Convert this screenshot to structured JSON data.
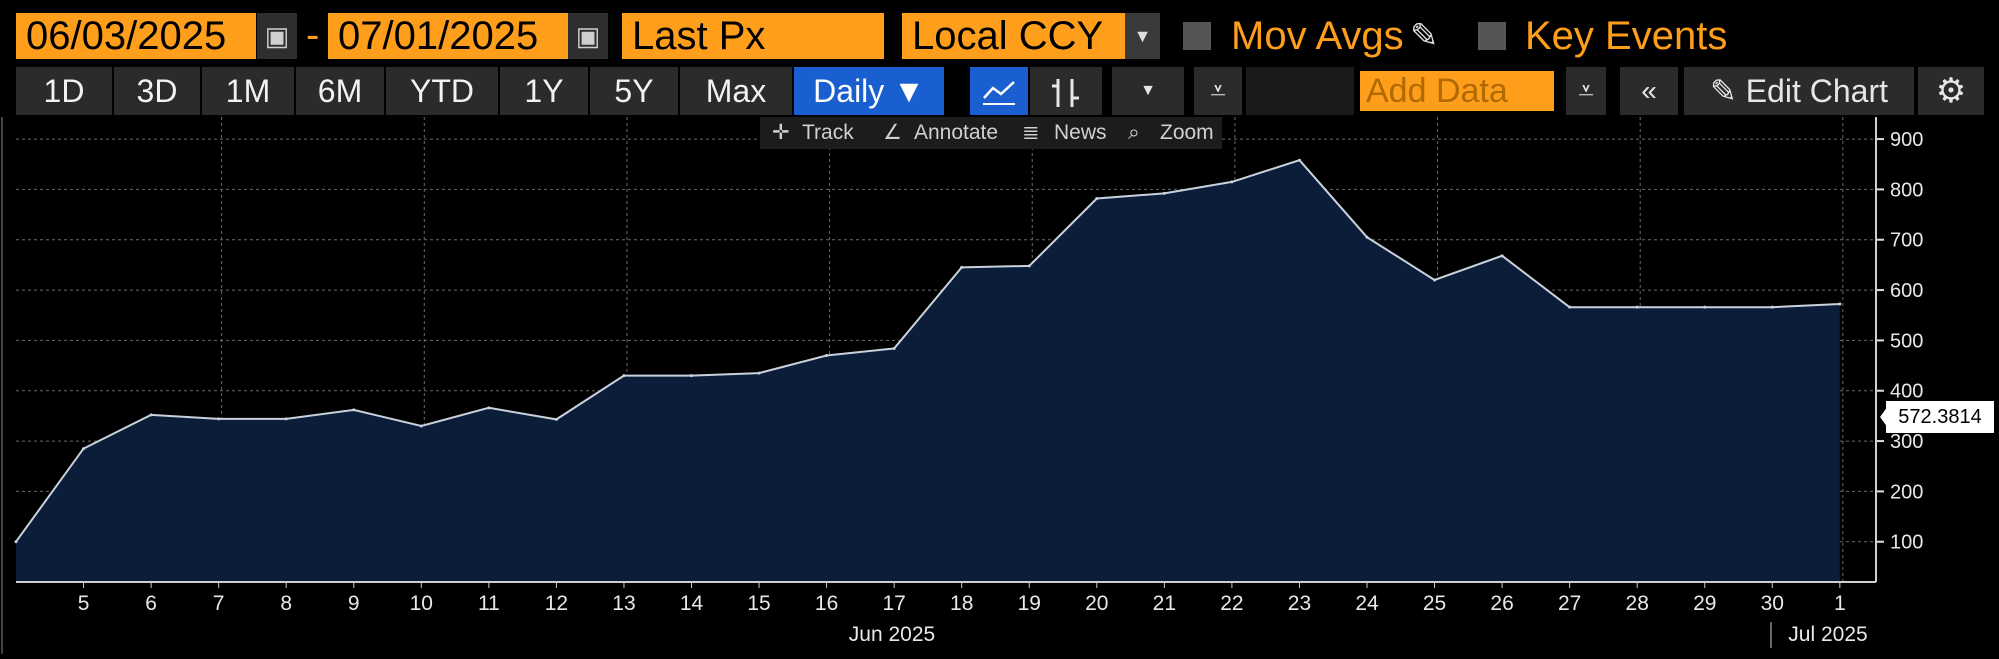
{
  "header": {
    "start_date": "06/03/2025",
    "end_date": "07/01/2025",
    "date_separator": "-",
    "field": "Last Px",
    "currency": "Local CCY",
    "mov_avgs_label": "Mov Avgs",
    "key_events_label": "Key Events",
    "calendar_icon": "calendar-icon",
    "dropdown_icon": "chevron-down-icon"
  },
  "toolbar": {
    "ranges": [
      "1D",
      "3D",
      "1M",
      "6M",
      "YTD",
      "1Y",
      "5Y",
      "Max"
    ],
    "frequency": "Daily ▼",
    "add_data_placeholder": "Add Data",
    "edit_chart_label": "Edit Chart"
  },
  "chart_toolbar": {
    "track": "Track",
    "annotate": "Annotate",
    "news": "News",
    "zoom": "Zoom"
  },
  "colors": {
    "accent": "#ff9e1b",
    "active_blue": "#1a5fd0",
    "area_fill": "#0b1d38",
    "line": "#c9d2dc"
  },
  "last_value_label": "572.3814",
  "chart_data": {
    "type": "area",
    "title": "",
    "xlabel": "",
    "ylabel": "",
    "month_labels": [
      "Jun 2025",
      "Jul 2025"
    ],
    "x": [
      "2025-06-04",
      "2025-06-05",
      "2025-06-06",
      "2025-06-07",
      "2025-06-08",
      "2025-06-09",
      "2025-06-10",
      "2025-06-11",
      "2025-06-12",
      "2025-06-13",
      "2025-06-14",
      "2025-06-15",
      "2025-06-16",
      "2025-06-17",
      "2025-06-18",
      "2025-06-19",
      "2025-06-20",
      "2025-06-21",
      "2025-06-22",
      "2025-06-23",
      "2025-06-24",
      "2025-06-25",
      "2025-06-26",
      "2025-06-27",
      "2025-06-28",
      "2025-06-29",
      "2025-06-30",
      "2025-07-01"
    ],
    "x_tick_labels": [
      "5",
      "6",
      "7",
      "8",
      "9",
      "10",
      "11",
      "12",
      "13",
      "14",
      "15",
      "16",
      "17",
      "18",
      "19",
      "20",
      "21",
      "22",
      "23",
      "24",
      "25",
      "26",
      "27",
      "28",
      "29",
      "30",
      "1"
    ],
    "values": [
      100,
      285,
      352,
      344,
      344,
      362,
      330,
      366,
      343,
      430,
      430,
      435,
      470,
      484,
      645,
      648,
      782,
      792,
      815,
      858,
      705,
      620,
      668,
      566,
      566,
      566,
      566,
      572.38
    ],
    "ylim": [
      20,
      920
    ],
    "yticks": [
      100,
      200,
      300,
      400,
      500,
      600,
      700,
      800,
      900
    ],
    "grid": true,
    "legend": "none"
  }
}
